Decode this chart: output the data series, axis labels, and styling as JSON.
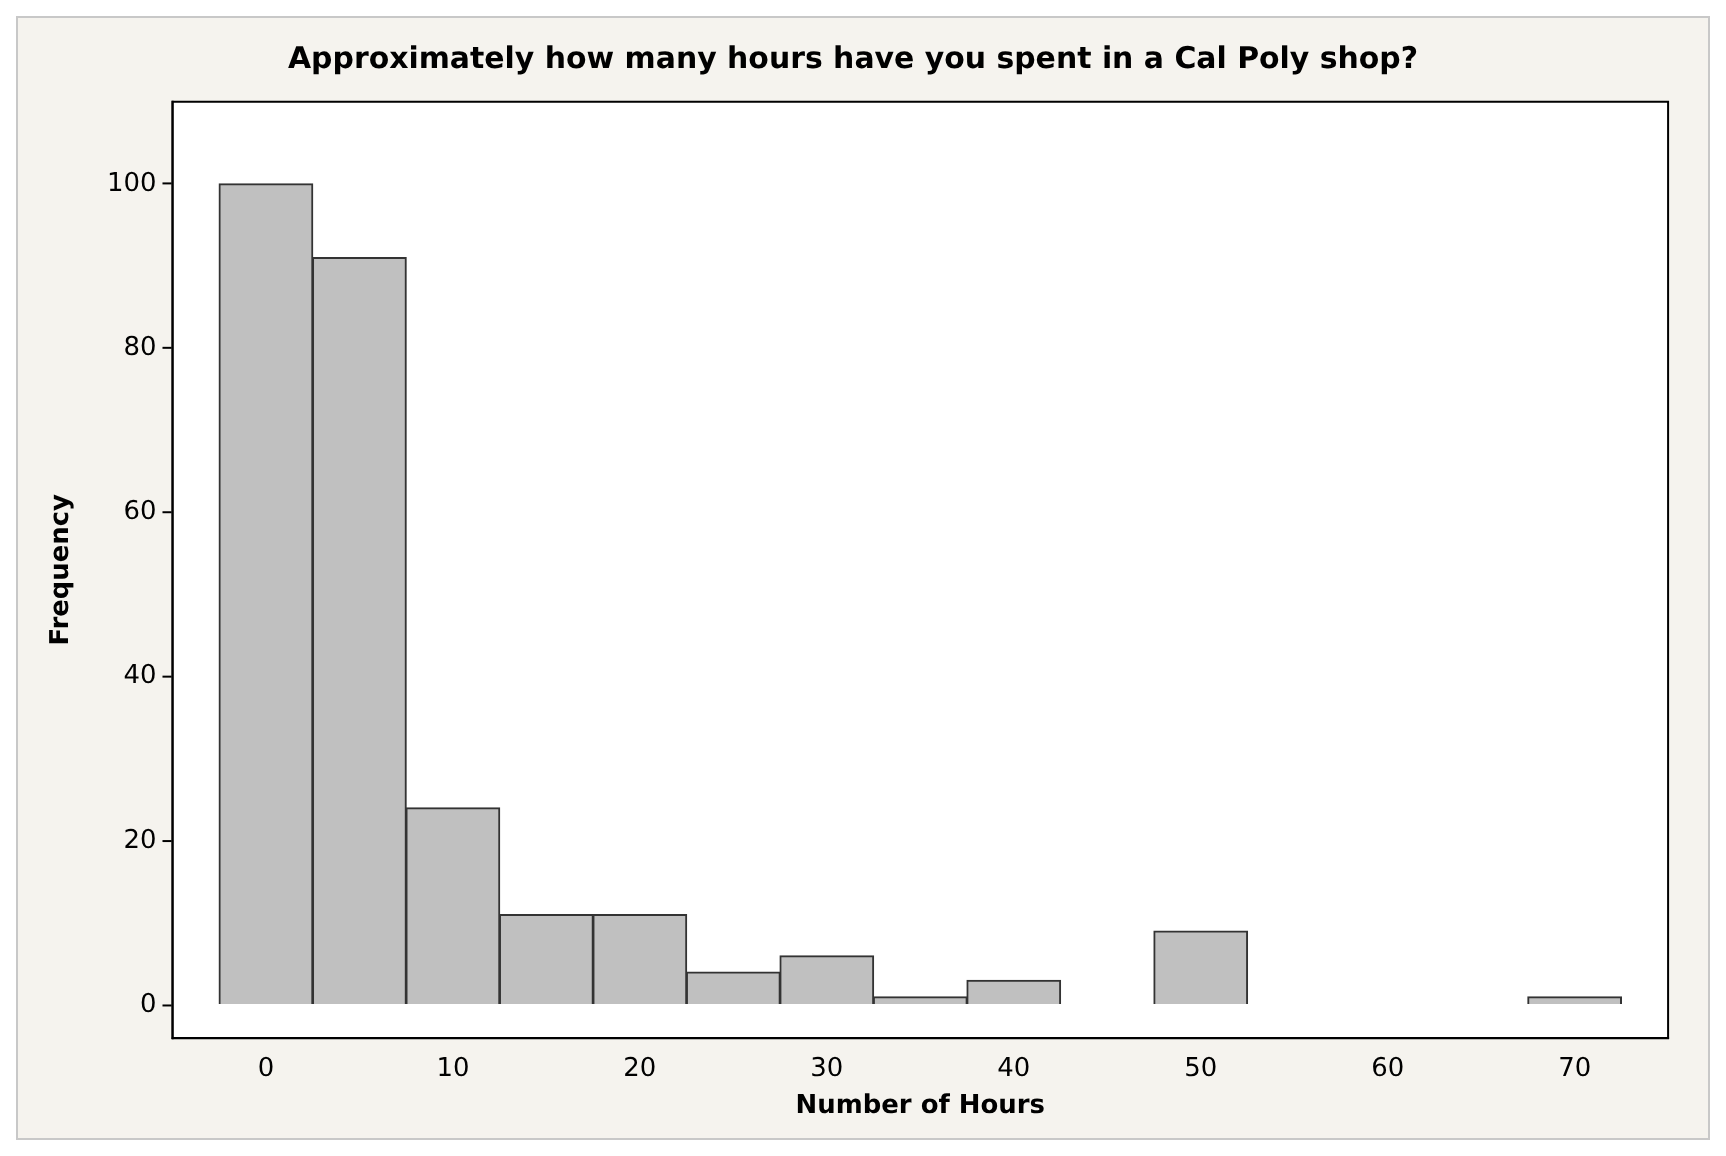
{
  "chart_data": {
    "type": "histogram",
    "title": "Approximately how many hours have you spent in a Cal Poly shop?",
    "xlabel": "Number of Hours",
    "ylabel": "Frequency",
    "bins": [
      -2.5,
      2.5,
      7.5,
      12.5,
      17.5,
      22.5,
      27.5,
      32.5,
      37.5,
      42.5,
      47.5,
      52.5,
      57.5,
      62.5,
      67.5,
      72.5
    ],
    "values": [
      100,
      91,
      24,
      11,
      11,
      4,
      6,
      1,
      3,
      0,
      9,
      0,
      0,
      0,
      1
    ],
    "color": "#c0c0c0",
    "xlim": [
      -5,
      75
    ],
    "xticks": [
      0,
      10,
      20,
      30,
      40,
      50,
      60,
      70
    ],
    "ylim": [
      -4,
      110
    ],
    "yticks": [
      0,
      20,
      40,
      60,
      80,
      100
    ],
    "grid": false,
    "legend": false
  }
}
